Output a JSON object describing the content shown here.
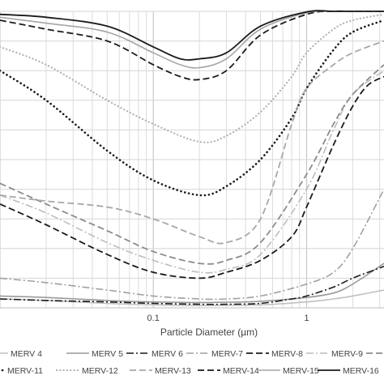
{
  "chart_data": {
    "type": "line",
    "xlabel": "Particle Diameter (µm)",
    "ylabel": "",
    "title": "",
    "x_scale": "log",
    "xlim": [
      0.01,
      3.2
    ],
    "ylim": [
      0,
      100
    ],
    "x_ticks": [
      {
        "value": 0.1,
        "label": "0.1"
      },
      {
        "value": 1,
        "label": "1"
      }
    ],
    "grid": true,
    "legend_position": "bottom",
    "series": [
      {
        "name": "MERV 4",
        "dash": "solid",
        "color": "#c0c0c0",
        "width": 1.6,
        "x": [
          0.01,
          0.02,
          0.05,
          0.1,
          0.2,
          0.3,
          0.5,
          1,
          1.5,
          2,
          3.2
        ],
        "y": [
          3,
          2.5,
          1.5,
          1,
          0.8,
          0.9,
          1,
          2,
          3,
          4,
          6
        ]
      },
      {
        "name": "MERV 5",
        "dash": "solid",
        "color": "#9a9a9a",
        "width": 1.6,
        "x": [
          0.01,
          0.02,
          0.05,
          0.1,
          0.2,
          0.3,
          0.5,
          1,
          1.5,
          2,
          3.2
        ],
        "y": [
          4,
          3.5,
          2.5,
          2,
          1.8,
          1.9,
          2.2,
          3.5,
          5,
          8,
          15
        ]
      },
      {
        "name": "MERV 6",
        "dash": "dashdot",
        "color": "#1a1a1a",
        "width": 1.6,
        "x": [
          0.01,
          0.02,
          0.05,
          0.1,
          0.2,
          0.3,
          0.5,
          0.8,
          1,
          1.5,
          2,
          3.2
        ],
        "y": [
          3,
          2.5,
          2,
          1.5,
          1.2,
          1.2,
          1.5,
          3,
          4,
          7,
          10,
          14
        ]
      },
      {
        "name": "MERV-7",
        "dash": "dashdot",
        "color": "#a0a0a0",
        "width": 1.6,
        "x": [
          0.01,
          0.02,
          0.05,
          0.1,
          0.2,
          0.3,
          0.5,
          1,
          1.5,
          2,
          3.2
        ],
        "y": [
          10,
          8.5,
          6,
          4,
          3,
          3,
          4,
          8,
          12,
          20,
          40
        ]
      },
      {
        "name": "MERV-8",
        "dash": "dash",
        "color": "#1a1a1a",
        "width": 1.8,
        "x": [
          0.01,
          0.02,
          0.05,
          0.1,
          0.2,
          0.3,
          0.5,
          0.8,
          1,
          1.5,
          2,
          2.5,
          3.2
        ],
        "y": [
          35,
          28,
          18,
          12,
          10,
          12,
          16,
          24,
          34,
          55,
          68,
          75,
          78
        ]
      },
      {
        "name": "MERV-9",
        "dash": "dashdot",
        "color": "#bdbdbd",
        "width": 1.6,
        "x": [
          0.01,
          0.02,
          0.05,
          0.1,
          0.2,
          0.3,
          0.5,
          1,
          1.5,
          2,
          3.2
        ],
        "y": [
          38,
          32,
          22,
          16,
          12,
          13,
          18,
          40,
          60,
          72,
          80
        ]
      },
      {
        "name": "MERV-10",
        "dash": "dash",
        "color": "#8c8c8c",
        "width": 1.8,
        "x": [
          0.01,
          0.02,
          0.05,
          0.1,
          0.2,
          0.3,
          0.5,
          1,
          1.5,
          2,
          3.2
        ],
        "y": [
          42,
          35,
          26,
          19,
          15,
          16,
          22,
          45,
          62,
          72,
          82
        ]
      },
      {
        "name": "MERV-11",
        "dash": "dot",
        "color": "#1a1a1a",
        "width": 2.6,
        "x": [
          0.01,
          0.02,
          0.05,
          0.1,
          0.2,
          0.3,
          0.5,
          0.8,
          1,
          1.5,
          2,
          3.2
        ],
        "y": [
          80,
          70,
          53,
          43,
          38,
          41,
          50,
          64,
          74,
          87,
          93,
          97
        ]
      },
      {
        "name": "MERV-12",
        "dash": "dot",
        "color": "#b0b0b0",
        "width": 2.2,
        "x": [
          0.01,
          0.02,
          0.05,
          0.1,
          0.2,
          0.3,
          0.5,
          0.8,
          1,
          1.5,
          2,
          3.2
        ],
        "y": [
          88,
          82,
          70,
          62,
          56,
          58,
          66,
          78,
          86,
          94,
          97,
          99
        ]
      },
      {
        "name": "MERV-13",
        "dash": "dash",
        "color": "#a8a8a8",
        "width": 1.8,
        "x": [
          0.01,
          0.02,
          0.05,
          0.1,
          0.2,
          0.3,
          0.5,
          0.8,
          1,
          1.5,
          2,
          3.2
        ],
        "y": [
          38,
          36,
          34,
          30,
          24,
          22,
          30,
          62,
          74,
          82,
          86,
          90
        ]
      },
      {
        "name": "MERV-14",
        "dash": "dash",
        "color": "#1a1a1a",
        "width": 1.8,
        "x": [
          0.01,
          0.02,
          0.05,
          0.1,
          0.15,
          0.2,
          0.3,
          0.5,
          1,
          1.5,
          2,
          3.2
        ],
        "y": [
          97,
          94,
          90,
          82,
          78,
          77,
          80,
          92,
          99,
          100,
          100,
          100
        ]
      },
      {
        "name": "MERV-15",
        "dash": "solid",
        "color": "#a6a6a6",
        "width": 1.6,
        "x": [
          0.01,
          0.02,
          0.05,
          0.1,
          0.15,
          0.2,
          0.3,
          0.5,
          1,
          1.5,
          2,
          3.2
        ],
        "y": [
          98,
          96,
          93,
          86,
          82,
          81,
          84,
          94,
          99.5,
          100,
          100,
          100
        ]
      },
      {
        "name": "MERV-16",
        "dash": "solid",
        "color": "#1a1a1a",
        "width": 1.8,
        "x": [
          0.01,
          0.02,
          0.05,
          0.1,
          0.15,
          0.2,
          0.3,
          0.5,
          1,
          1.5,
          2,
          3.2
        ],
        "y": [
          99,
          98,
          95,
          88,
          84,
          84,
          86,
          95,
          99.8,
          100,
          100,
          100
        ]
      }
    ]
  }
}
